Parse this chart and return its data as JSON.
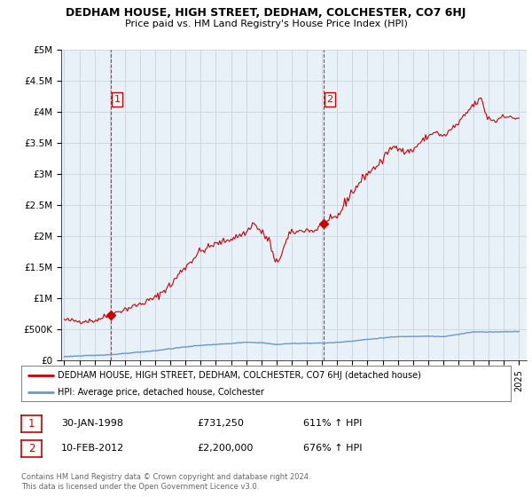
{
  "title": "DEDHAM HOUSE, HIGH STREET, DEDHAM, COLCHESTER, CO7 6HJ",
  "subtitle": "Price paid vs. HM Land Registry's House Price Index (HPI)",
  "background_color": "#ffffff",
  "chart_bg_color": "#e8f0f8",
  "grid_color": "#c8d4e0",
  "ylim": [
    0,
    5000000
  ],
  "yticks": [
    0,
    500000,
    1000000,
    1500000,
    2000000,
    2500000,
    3000000,
    3500000,
    4000000,
    4500000,
    5000000
  ],
  "ytick_labels": [
    "£0",
    "£500K",
    "£1M",
    "£1.5M",
    "£2M",
    "£2.5M",
    "£3M",
    "£3.5M",
    "£4M",
    "£4.5M",
    "£5M"
  ],
  "xlim_start": 1994.8,
  "xlim_end": 2025.5,
  "house_color": "#cc0000",
  "hpi_color": "#6699cc",
  "marker1_x": 1998.08,
  "marker1_y": 731250,
  "marker2_x": 2012.11,
  "marker2_y": 2200000,
  "marker1_label": "1",
  "marker2_label": "2",
  "vline1_x": 1998.08,
  "vline2_x": 2012.11,
  "legend_line1": "DEDHAM HOUSE, HIGH STREET, DEDHAM, COLCHESTER, CO7 6HJ (detached house)",
  "legend_line2": "HPI: Average price, detached house, Colchester",
  "table_row1_num": "1",
  "table_row1_date": "30-JAN-1998",
  "table_row1_price": "£731,250",
  "table_row1_hpi": "611% ↑ HPI",
  "table_row2_num": "2",
  "table_row2_date": "10-FEB-2012",
  "table_row2_price": "£2,200,000",
  "table_row2_hpi": "676% ↑ HPI",
  "footnote": "Contains HM Land Registry data © Crown copyright and database right 2024.\nThis data is licensed under the Open Government Licence v3.0."
}
